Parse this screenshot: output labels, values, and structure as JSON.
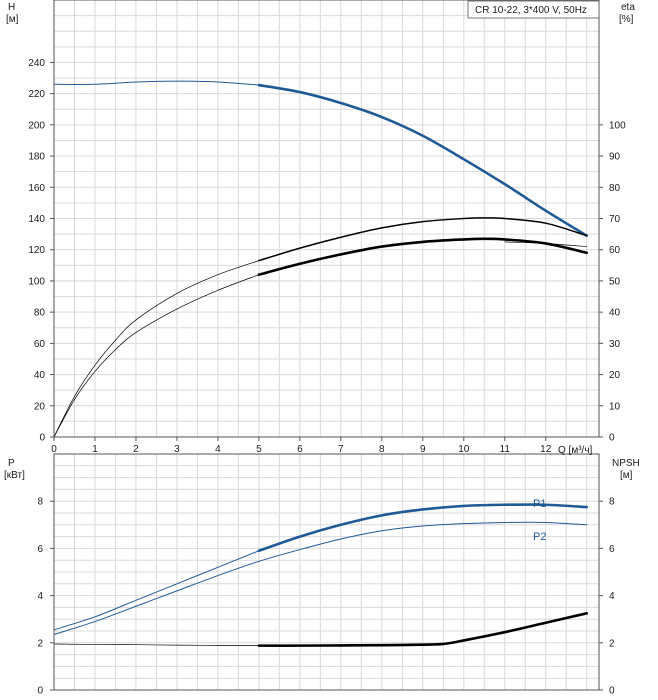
{
  "colors": {
    "blue": "#1f5a96",
    "black": "#000000",
    "grid": "#d9d9d9",
    "frame": "#555555"
  },
  "chart_data": [
    {
      "type": "line",
      "panel": "head-efficiency",
      "legend_box": "CR 10-22, 3*400 V, 50Hz",
      "legend_placement": "top-right",
      "grid": true,
      "xlabel": "Q [м³/ч]",
      "ylabel_left": [
        "H",
        "[м]"
      ],
      "ylabel_right": [
        "eta",
        "[%]"
      ],
      "xlim": [
        0,
        13.3
      ],
      "ylim_left": [
        0,
        280
      ],
      "ylim_right": [
        0,
        140
      ],
      "xticks": [
        0,
        1,
        2,
        3,
        4,
        5,
        6,
        7,
        8,
        9,
        10,
        11,
        12
      ],
      "yticks_left": [
        0,
        20,
        40,
        60,
        80,
        100,
        120,
        140,
        160,
        180,
        200,
        220,
        240
      ],
      "yticks_right": [
        0,
        10,
        20,
        30,
        40,
        50,
        60,
        70,
        80,
        90,
        100
      ],
      "series": [
        {
          "axis": "left",
          "style": "blue-thin",
          "x": [
            0,
            1,
            2,
            3,
            4,
            5
          ],
          "y": [
            226,
            226,
            227.5,
            228,
            227.5,
            225.5
          ]
        },
        {
          "axis": "left",
          "style": "blue-thick",
          "x": [
            5,
            6,
            7,
            8,
            9,
            10,
            11,
            12,
            13
          ],
          "y": [
            225.5,
            221,
            214,
            205,
            193,
            178,
            162,
            145,
            129
          ]
        },
        {
          "axis": "right",
          "style": "black-thin",
          "x": [
            0,
            0.5,
            1,
            1.5,
            2,
            3,
            4,
            5
          ],
          "y": [
            0,
            13,
            23,
            31,
            37.5,
            46,
            52,
            56.5
          ]
        },
        {
          "axis": "right",
          "style": "black-medium",
          "x": [
            5,
            6,
            7,
            8,
            9,
            10,
            10.5,
            11,
            12,
            13
          ],
          "y": [
            56.5,
            60.5,
            64,
            67,
            69,
            70,
            70.2,
            70,
            68.5,
            64.5
          ]
        },
        {
          "axis": "right",
          "style": "black-thin",
          "x": [
            0,
            0.5,
            1,
            1.5,
            2,
            3,
            4,
            5
          ],
          "y": [
            0,
            12,
            21,
            28,
            33.5,
            41,
            47,
            52
          ]
        },
        {
          "axis": "right",
          "style": "black-thick",
          "x": [
            5,
            6,
            7,
            8,
            9,
            10,
            10.5,
            11,
            12,
            13
          ],
          "y": [
            52,
            55.5,
            58.5,
            61,
            62.5,
            63.3,
            63.5,
            63.3,
            62,
            59
          ]
        },
        {
          "axis": "right",
          "style": "black-thin",
          "x": [
            11,
            12,
            13
          ],
          "y": [
            62.5,
            62,
            61
          ]
        }
      ]
    },
    {
      "type": "line",
      "panel": "power-npsh",
      "grid": true,
      "ylabel_left": [
        "P",
        "[кВт]"
      ],
      "ylabel_right": [
        "NPSH",
        "[м]"
      ],
      "xlim": [
        0,
        13.3
      ],
      "ylim_left": [
        0,
        10
      ],
      "ylim_right": [
        0,
        10
      ],
      "yticks_left": [
        0,
        2,
        4,
        6,
        8
      ],
      "yticks_right": [
        0,
        2,
        4,
        6,
        8
      ],
      "series": [
        {
          "name": "P1",
          "axis": "left",
          "style": "blue-thin",
          "x": [
            0,
            1,
            2,
            3,
            4,
            5
          ],
          "y": [
            2.55,
            3.1,
            3.8,
            4.5,
            5.2,
            5.9
          ]
        },
        {
          "name": "P1",
          "axis": "left",
          "style": "blue-thick",
          "x": [
            5,
            6,
            7,
            8,
            9,
            10,
            11,
            12,
            13
          ],
          "y": [
            5.9,
            6.5,
            7.0,
            7.4,
            7.65,
            7.8,
            7.85,
            7.85,
            7.75
          ]
        },
        {
          "name": "P2",
          "axis": "left",
          "style": "blue-thin",
          "x": [
            0,
            1,
            2,
            3,
            4,
            5,
            6,
            7,
            8,
            9,
            10,
            11,
            12,
            13
          ],
          "y": [
            2.35,
            2.9,
            3.55,
            4.2,
            4.85,
            5.45,
            5.95,
            6.4,
            6.75,
            6.95,
            7.05,
            7.1,
            7.1,
            7.0
          ]
        },
        {
          "axis": "right",
          "style": "black-thin",
          "x": [
            0,
            1,
            2,
            3,
            4,
            5
          ],
          "y": [
            1.95,
            1.93,
            1.92,
            1.9,
            1.89,
            1.88
          ]
        },
        {
          "axis": "right",
          "style": "black-thick",
          "x": [
            5,
            6,
            7,
            8,
            9,
            9.5,
            10,
            11,
            12,
            13
          ],
          "y": [
            1.88,
            1.88,
            1.89,
            1.9,
            1.92,
            1.95,
            2.1,
            2.45,
            2.85,
            3.25
          ]
        }
      ]
    }
  ]
}
